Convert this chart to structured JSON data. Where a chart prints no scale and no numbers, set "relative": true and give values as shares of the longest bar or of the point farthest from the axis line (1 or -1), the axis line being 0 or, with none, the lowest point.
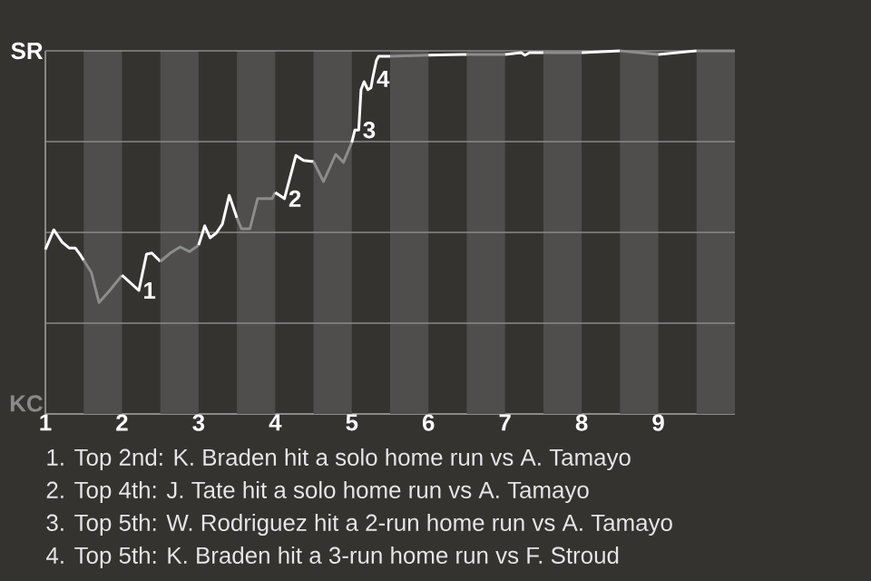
{
  "chart_data": {
    "type": "line",
    "relative": true,
    "xlim": [
      1,
      10
    ],
    "xticks": [
      {
        "value": 1,
        "label": "1"
      },
      {
        "value": 2,
        "label": "2"
      },
      {
        "value": 3,
        "label": "3"
      },
      {
        "value": 4,
        "label": "4"
      },
      {
        "value": 5,
        "label": "5"
      },
      {
        "value": 6,
        "label": "6"
      },
      {
        "value": 7,
        "label": "7"
      },
      {
        "value": 8,
        "label": "8"
      },
      {
        "value": 9,
        "label": "9"
      }
    ],
    "grid": "y",
    "bands": [
      {
        "axis": "x",
        "from": 1.5,
        "to": 2,
        "color": "#4f4e4c"
      },
      {
        "axis": "x",
        "from": 2.5,
        "to": 3,
        "color": "#4f4e4c"
      },
      {
        "axis": "x",
        "from": 3.5,
        "to": 4,
        "color": "#4f4e4c"
      },
      {
        "axis": "x",
        "from": 4.5,
        "to": 5,
        "color": "#4f4e4c"
      },
      {
        "axis": "x",
        "from": 5.5,
        "to": 6,
        "color": "#4f4e4c"
      },
      {
        "axis": "x",
        "from": 6.5,
        "to": 7,
        "color": "#4f4e4c"
      },
      {
        "axis": "x",
        "from": 7.5,
        "to": 8,
        "color": "#4f4e4c"
      },
      {
        "axis": "x",
        "from": 8.5,
        "to": 9,
        "color": "#4f4e4c"
      },
      {
        "axis": "x",
        "from": 9.5,
        "to": 10,
        "color": "#4f4e4c"
      }
    ],
    "series": [
      {
        "color": "#ffffff",
        "x": [
          1,
          1.11,
          1.22,
          1.31,
          1.39,
          1.46,
          1.5
        ],
        "values": [
          0.453,
          0.507,
          0.473,
          0.457,
          0.457,
          0.437,
          0.423
        ]
      },
      {
        "color": "#8c8c8c",
        "x": [
          1.5,
          1.6,
          1.7,
          1.84,
          2
        ],
        "values": [
          0.423,
          0.39,
          0.307,
          0.34,
          0.382
        ]
      },
      {
        "color": "#ffffff",
        "x": [
          2,
          2.22,
          2.32,
          2.39,
          2.5
        ],
        "values": [
          0.382,
          0.34,
          0.44,
          0.443,
          0.42
        ]
      },
      {
        "color": "#8c8c8c",
        "x": [
          2.5,
          2.63,
          2.76,
          2.88,
          3
        ],
        "values": [
          0.42,
          0.443,
          0.46,
          0.447,
          0.465
        ]
      },
      {
        "color": "#ffffff",
        "x": [
          3,
          3.08,
          3.15,
          3.23,
          3.31,
          3.4,
          3.5
        ],
        "values": [
          0.465,
          0.518,
          0.485,
          0.498,
          0.523,
          0.602,
          0.54
        ]
      },
      {
        "color": "#8c8c8c",
        "x": [
          3.5,
          3.56,
          3.67,
          3.77,
          3.96,
          4
        ],
        "values": [
          0.54,
          0.51,
          0.51,
          0.593,
          0.593,
          0.61
        ]
      },
      {
        "color": "#ffffff",
        "x": [
          4,
          4.12,
          4.27,
          4.37,
          4.5
        ],
        "values": [
          0.61,
          0.593,
          0.712,
          0.698,
          0.695
        ]
      },
      {
        "color": "#8c8c8c",
        "x": [
          4.5,
          4.63,
          4.79,
          4.89,
          5
        ],
        "values": [
          0.695,
          0.64,
          0.715,
          0.693,
          0.748
        ]
      },
      {
        "color": "#ffffff",
        "x": [
          5,
          5.04,
          5.09,
          5.12,
          5.16,
          5.21,
          5.25,
          5.27,
          5.32,
          5.35,
          5.5
        ],
        "values": [
          0.748,
          0.782,
          0.782,
          0.893,
          0.915,
          0.893,
          0.898,
          0.923,
          0.973,
          0.985,
          0.985
        ]
      },
      {
        "color": "#8c8c8c",
        "x": [
          5.5,
          6
        ],
        "values": [
          0.985,
          0.988
        ]
      },
      {
        "color": "#ffffff",
        "x": [
          6,
          6.5
        ],
        "values": [
          0.988,
          0.99
        ]
      },
      {
        "color": "#8c8c8c",
        "x": [
          6.5,
          7
        ],
        "values": [
          0.99,
          0.99
        ]
      },
      {
        "color": "#ffffff",
        "x": [
          7,
          7.21,
          7.26,
          7.32,
          7.5
        ],
        "values": [
          0.99,
          0.995,
          0.988,
          0.995,
          0.995
        ]
      },
      {
        "color": "#8c8c8c",
        "x": [
          7.5,
          8
        ],
        "values": [
          0.995,
          0.995
        ]
      },
      {
        "color": "#ffffff",
        "x": [
          8,
          8.5
        ],
        "values": [
          0.995,
          1
        ]
      },
      {
        "color": "#8c8c8c",
        "x": [
          8.5,
          9
        ],
        "values": [
          1,
          0.99
        ]
      },
      {
        "color": "#ffffff",
        "x": [
          9,
          9.5
        ],
        "values": [
          0.99,
          1
        ]
      },
      {
        "color": "#8c8c8c",
        "x": [
          9.5,
          10
        ],
        "values": [
          1,
          1
        ]
      }
    ],
    "annotations": [
      "SR",
      "KC",
      {
        "text": "1",
        "x": 2.22,
        "y": 0.34
      },
      {
        "text": "2",
        "x": 4.12,
        "y": 0.593
      },
      {
        "text": "3",
        "x": 5.09,
        "y": 0.782
      },
      {
        "text": "4",
        "x": 5.27,
        "y": 0.923
      },
      "1. Top 2nd: K. Braden hit a solo home run vs A. Tamayo",
      "2. Top 4th: J. Tate hit a solo home run vs A. Tamayo",
      "3. Top 5th: W. Rodriguez hit a 2-run home run vs A. Tamayo",
      "4. Top 5th: K. Braden hit a 3-run home run vs F. Stroud"
    ]
  }
}
